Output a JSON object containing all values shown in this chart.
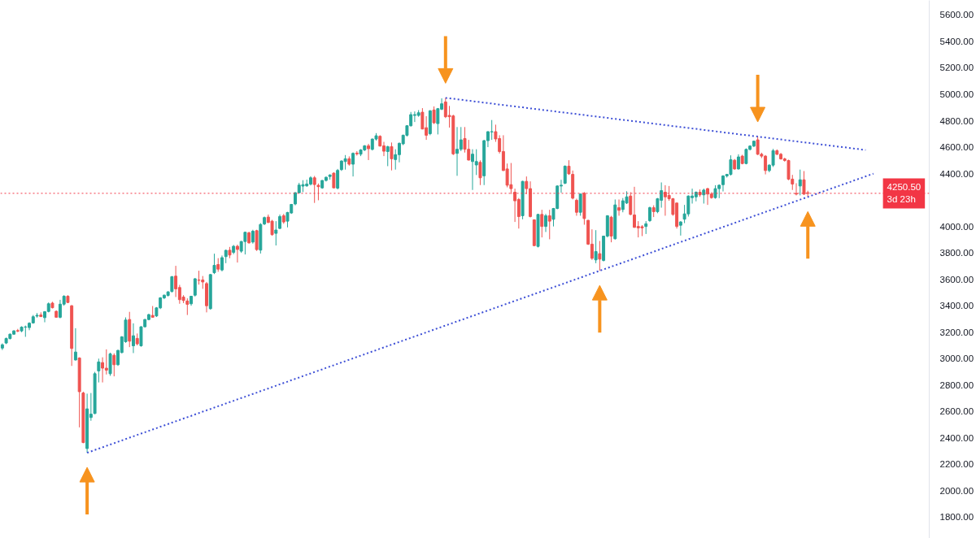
{
  "chart_data": {
    "type": "candlestick",
    "categories": [
      null,
      null,
      null,
      null,
      null,
      null,
      null,
      null,
      null,
      null,
      null,
      null,
      null,
      null,
      null,
      null,
      null,
      null,
      null,
      null,
      null,
      null,
      null,
      null,
      null,
      null,
      null,
      null,
      null,
      null,
      null,
      null,
      null,
      null,
      null,
      null,
      null,
      null,
      null,
      null,
      null,
      null,
      null,
      null,
      null,
      null,
      null,
      null,
      null,
      null,
      null,
      null,
      null,
      null,
      null,
      null,
      null,
      null,
      null,
      null,
      null,
      null,
      null,
      null,
      null,
      null,
      null,
      null,
      null,
      null,
      null,
      null,
      null,
      null,
      null,
      null,
      null,
      null,
      null,
      null,
      null,
      null,
      null,
      null,
      null,
      null,
      null,
      null,
      null,
      null,
      null,
      null,
      null,
      null,
      null,
      null,
      null,
      null,
      null,
      null,
      null,
      null,
      null,
      null,
      null,
      null,
      null,
      null,
      null,
      null,
      null,
      null,
      null,
      null,
      null,
      null,
      null,
      null,
      null,
      null,
      null,
      null,
      null,
      null,
      null,
      null,
      null,
      null,
      null,
      null,
      null,
      null,
      null,
      null,
      null,
      null,
      null,
      null,
      null,
      null,
      null,
      null,
      null,
      null,
      null,
      null,
      null,
      null,
      null,
      null,
      null,
      null,
      null,
      null,
      null,
      null,
      null,
      null,
      null,
      null,
      null,
      null,
      null,
      null,
      null,
      null,
      null,
      null,
      null,
      null,
      null,
      null,
      null,
      null,
      null,
      null,
      null,
      null,
      null,
      null,
      null,
      null,
      null,
      null,
      null,
      null,
      null,
      null,
      null,
      null,
      null,
      null,
      null,
      null,
      null,
      null,
      null,
      null,
      null,
      null,
      null,
      null,
      null,
      null,
      null,
      null,
      null,
      null,
      null,
      null,
      null,
      null,
      null,
      null,
      null,
      null,
      null,
      null,
      null,
      null,
      null,
      null,
      null,
      null,
      null,
      null,
      null,
      null,
      null,
      null,
      null,
      null,
      null,
      null,
      null,
      null,
      null,
      null,
      null,
      null,
      null
    ],
    "ohlc": [
      [
        3080,
        3115,
        3065,
        3105
      ],
      [
        3118,
        3160,
        3110,
        3152
      ],
      [
        3152,
        3190,
        3145,
        3185
      ],
      [
        3185,
        3215,
        3180,
        3210
      ],
      [
        3212,
        3225,
        3200,
        3208
      ],
      [
        3210,
        3245,
        3200,
        3238
      ],
      [
        3238,
        3250,
        3165,
        3240
      ],
      [
        3235,
        3275,
        3215,
        3268
      ],
      [
        3270,
        3330,
        3265,
        3317
      ],
      [
        3322,
        3345,
        3310,
        3328
      ],
      [
        3330,
        3350,
        3315,
        3318
      ],
      [
        3310,
        3360,
        3275,
        3355
      ],
      [
        3357,
        3425,
        3350,
        3415
      ],
      [
        3420,
        3430,
        3380,
        3385
      ],
      [
        3358,
        3365,
        3310,
        3313
      ],
      [
        3313,
        3445,
        3305,
        3412
      ],
      [
        3412,
        3480,
        3400,
        3472
      ],
      [
        3472,
        3480,
        3420,
        3425
      ],
      [
        3400,
        3405,
        2945,
        3077
      ],
      [
        2990,
        3230,
        2985,
        3050
      ],
      [
        3005,
        3010,
        2480,
        2750
      ],
      [
        2740,
        2750,
        2360,
        2365
      ],
      [
        2320,
        2735,
        2288,
        2620
      ],
      [
        2555,
        2740,
        2530,
        2580
      ],
      [
        2585,
        2900,
        2580,
        2886
      ],
      [
        2907,
        3000,
        2820,
        2975
      ],
      [
        2970,
        3010,
        2820,
        2928
      ],
      [
        2928,
        3070,
        2880,
        2913
      ],
      [
        2886,
        3045,
        2870,
        3036
      ],
      [
        3025,
        3040,
        2866,
        2954
      ],
      [
        2954,
        3068,
        2945,
        3062
      ],
      [
        3046,
        3170,
        3040,
        3165
      ],
      [
        3128,
        3312,
        3120,
        3292
      ],
      [
        3296,
        3354,
        3087,
        3132
      ],
      [
        3097,
        3267,
        3042,
        3173
      ],
      [
        3153,
        3190,
        3100,
        3112
      ],
      [
        3097,
        3245,
        3090,
        3241
      ],
      [
        3241,
        3300,
        3235,
        3296
      ],
      [
        3296,
        3340,
        3290,
        3333
      ],
      [
        3327,
        3398,
        3310,
        3313
      ],
      [
        3323,
        3390,
        3315,
        3384
      ],
      [
        3384,
        3465,
        3375,
        3460
      ],
      [
        3460,
        3485,
        3450,
        3480
      ],
      [
        3478,
        3510,
        3470,
        3505
      ],
      [
        3508,
        3625,
        3500,
        3620
      ],
      [
        3624,
        3702,
        3466,
        3528
      ],
      [
        3538,
        3558,
        3415,
        3446
      ],
      [
        3466,
        3480,
        3420,
        3440
      ],
      [
        3436,
        3456,
        3330,
        3411
      ],
      [
        3415,
        3475,
        3400,
        3472
      ],
      [
        3480,
        3610,
        3470,
        3604
      ],
      [
        3595,
        3665,
        3560,
        3593
      ],
      [
        3595,
        3625,
        3528,
        3580
      ],
      [
        3568,
        3580,
        3350,
        3400
      ],
      [
        3378,
        3640,
        3370,
        3636
      ],
      [
        3650,
        3794,
        3640,
        3706
      ],
      [
        3712,
        3760,
        3657,
        3677
      ],
      [
        3671,
        3780,
        3660,
        3764
      ],
      [
        3772,
        3825,
        3722,
        3819
      ],
      [
        3820,
        3845,
        3760,
        3784
      ],
      [
        3804,
        3860,
        3790,
        3850
      ],
      [
        3850,
        3862,
        3727,
        3826
      ],
      [
        3813,
        3890,
        3800,
        3886
      ],
      [
        3886,
        3960,
        3788,
        3956
      ],
      [
        3952,
        3960,
        3870,
        3876
      ],
      [
        3882,
        3975,
        3870,
        3964
      ],
      [
        3968,
        3975,
        3815,
        3825
      ],
      [
        3821,
        4025,
        3795,
        4015
      ],
      [
        4019,
        4075,
        4010,
        4067
      ],
      [
        4071,
        4090,
        4026,
        4030
      ],
      [
        4040,
        4050,
        3930,
        3938
      ],
      [
        3948,
        4040,
        3856,
        3973
      ],
      [
        3985,
        4090,
        3980,
        4075
      ],
      [
        4081,
        4095,
        4020,
        4034
      ],
      [
        4040,
        4110,
        3993,
        4106
      ],
      [
        4102,
        4170,
        4095,
        4167
      ],
      [
        4170,
        4260,
        4160,
        4255
      ],
      [
        4255,
        4330,
        4250,
        4313
      ],
      [
        4305,
        4350,
        4260,
        4316
      ],
      [
        4307,
        4354,
        4300,
        4321
      ],
      [
        4320,
        4380,
        4310,
        4368
      ],
      [
        4368,
        4382,
        4178,
        4317
      ],
      [
        4311,
        4325,
        4198,
        4301
      ],
      [
        4292,
        4350,
        4285,
        4348
      ],
      [
        4348,
        4378,
        4340,
        4372
      ],
      [
        4378,
        4395,
        4354,
        4389
      ],
      [
        4403,
        4410,
        4290,
        4292
      ],
      [
        4290,
        4435,
        4280,
        4424
      ],
      [
        4430,
        4500,
        4420,
        4495
      ],
      [
        4491,
        4540,
        4430,
        4512
      ],
      [
        4512,
        4530,
        4460,
        4471
      ],
      [
        4471,
        4560,
        4378,
        4553
      ],
      [
        4555,
        4570,
        4536,
        4549
      ],
      [
        4547,
        4585,
        4532,
        4579
      ],
      [
        4579,
        4615,
        4570,
        4610
      ],
      [
        4610,
        4625,
        4502,
        4588
      ],
      [
        4583,
        4665,
        4575,
        4661
      ],
      [
        4661,
        4706,
        4650,
        4686
      ],
      [
        4682,
        4690,
        4605,
        4608
      ],
      [
        4610,
        4640,
        4532,
        4569
      ],
      [
        4567,
        4610,
        4456,
        4604
      ],
      [
        4604,
        4635,
        4424,
        4512
      ],
      [
        4506,
        4584,
        4430,
        4543
      ],
      [
        4543,
        4635,
        4485,
        4629
      ],
      [
        4625,
        4695,
        4615,
        4690
      ],
      [
        4690,
        4765,
        4680,
        4762
      ],
      [
        4762,
        4866,
        4755,
        4846
      ],
      [
        4840,
        4870,
        4790,
        4846
      ],
      [
        4840,
        4880,
        4830,
        4860
      ],
      [
        4864,
        4895,
        4735,
        4737
      ],
      [
        4747,
        4834,
        4655,
        4690
      ],
      [
        4702,
        4880,
        4690,
        4875
      ],
      [
        4881,
        4908,
        4775,
        4784
      ],
      [
        4778,
        4896,
        4696,
        4891
      ],
      [
        4887,
        4969,
        4880,
        4928
      ],
      [
        4942,
        4973,
        4820,
        4830
      ],
      [
        4840,
        4912,
        4748,
        4830
      ],
      [
        4836,
        4845,
        4540,
        4549
      ],
      [
        4553,
        4752,
        4383,
        4584
      ],
      [
        4584,
        4752,
        4570,
        4655
      ],
      [
        4665,
        4752,
        4559,
        4584
      ],
      [
        4584,
        4655,
        4500,
        4502
      ],
      [
        4491,
        4584,
        4276,
        4547
      ],
      [
        4465,
        4584,
        4389,
        4491
      ],
      [
        4485,
        4500,
        4313,
        4368
      ],
      [
        4383,
        4655,
        4313,
        4649
      ],
      [
        4649,
        4720,
        4600,
        4717
      ],
      [
        4715,
        4805,
        4655,
        4717
      ],
      [
        4717,
        4770,
        4640,
        4662
      ],
      [
        4665,
        4690,
        4552,
        4567
      ],
      [
        4567,
        4690,
        4420,
        4423
      ],
      [
        4435,
        4476,
        4296,
        4312
      ],
      [
        4316,
        4480,
        4245,
        4286
      ],
      [
        4259,
        4286,
        4034,
        4194
      ],
      [
        4204,
        4215,
        3984,
        4075
      ],
      [
        4081,
        4345,
        4054,
        4341
      ],
      [
        4341,
        4378,
        4245,
        4286
      ],
      [
        4286,
        4341,
        4068,
        4075
      ],
      [
        4050,
        4054,
        3850,
        3855
      ],
      [
        3849,
        4095,
        3841,
        4091
      ],
      [
        4091,
        4126,
        3917,
        4000
      ],
      [
        4000,
        4095,
        3958,
        4081
      ],
      [
        4081,
        4126,
        3903,
        4040
      ],
      [
        4054,
        4140,
        4000,
        4136
      ],
      [
        4136,
        4310,
        4130,
        4306
      ],
      [
        4306,
        4353,
        4255,
        4312
      ],
      [
        4327,
        4462,
        4320,
        4456
      ],
      [
        4456,
        4501,
        4390,
        4398
      ],
      [
        4394,
        4423,
        4205,
        4214
      ],
      [
        4198,
        4210,
        4081,
        4107
      ],
      [
        4107,
        4248,
        4081,
        4245
      ],
      [
        4251,
        4260,
        4013,
        4060
      ],
      [
        4046,
        4050,
        3860,
        3866
      ],
      [
        3866,
        3978,
        3747,
        3759
      ],
      [
        3747,
        3972,
        3722,
        3810
      ],
      [
        3794,
        3890,
        3665,
        3753
      ],
      [
        3743,
        3930,
        3735,
        3927
      ],
      [
        3927,
        4085,
        3917,
        4081
      ],
      [
        4070,
        4080,
        3880,
        3927
      ],
      [
        3907,
        4204,
        3900,
        4163
      ],
      [
        4142,
        4204,
        4081,
        4122
      ],
      [
        4128,
        4215,
        4107,
        4194
      ],
      [
        4177,
        4266,
        4170,
        4224
      ],
      [
        4230,
        4259,
        4085,
        4091
      ],
      [
        4087,
        4300,
        3990,
        3993
      ],
      [
        4000,
        4040,
        3917,
        3989
      ],
      [
        3998,
        4010,
        3927,
        3989
      ],
      [
        4000,
        4040,
        3943,
        4020
      ],
      [
        4044,
        4150,
        4034,
        4142
      ],
      [
        4142,
        4160,
        4071,
        4112
      ],
      [
        4112,
        4215,
        4100,
        4210
      ],
      [
        4198,
        4333,
        4142,
        4271
      ],
      [
        4259,
        4312,
        4081,
        4224
      ],
      [
        4235,
        4306,
        4194,
        4210
      ],
      [
        4210,
        4215,
        4081,
        4091
      ],
      [
        4177,
        4180,
        3984,
        4000
      ],
      [
        4009,
        4040,
        3931,
        4034
      ],
      [
        4055,
        4163,
        4025,
        4095
      ],
      [
        4095,
        4235,
        4075,
        4230
      ],
      [
        4218,
        4286,
        4173,
        4230
      ],
      [
        4224,
        4265,
        4190,
        4259
      ],
      [
        4259,
        4280,
        4224,
        4239
      ],
      [
        4239,
        4286,
        4173,
        4275
      ],
      [
        4286,
        4292,
        4163,
        4245
      ],
      [
        4245,
        4259,
        4210,
        4218
      ],
      [
        4218,
        4312,
        4210,
        4286
      ],
      [
        4286,
        4318,
        4214,
        4312
      ],
      [
        4316,
        4388,
        4265,
        4382
      ],
      [
        4382,
        4398,
        4370,
        4394
      ],
      [
        4394,
        4538,
        4385,
        4505
      ],
      [
        4501,
        4510,
        4429,
        4435
      ],
      [
        4435,
        4546,
        4430,
        4526
      ],
      [
        4532,
        4542,
        4470,
        4476
      ],
      [
        4476,
        4590,
        4470,
        4583
      ],
      [
        4583,
        4614,
        4575,
        4608
      ],
      [
        4608,
        4650,
        4600,
        4645
      ],
      [
        4655,
        4680,
        4540,
        4546
      ],
      [
        4546,
        4558,
        4517,
        4532
      ],
      [
        4532,
        4540,
        4394,
        4423
      ],
      [
        4423,
        4470,
        4410,
        4464
      ],
      [
        4464,
        4587,
        4450,
        4573
      ],
      [
        4573,
        4583,
        4540,
        4546
      ],
      [
        4546,
        4556,
        4505,
        4511
      ],
      [
        4511,
        4520,
        4490,
        4499
      ],
      [
        4499,
        4505,
        4350,
        4358
      ],
      [
        4358,
        4390,
        4276,
        4321
      ],
      [
        4250,
        4327,
        4235,
        4245
      ],
      [
        4306,
        4430,
        4235,
        4353
      ],
      [
        4353,
        4419,
        4238,
        4245
      ],
      [
        4255,
        4270,
        4223,
        4250.5
      ],
      null,
      null,
      null,
      null,
      null,
      null,
      null,
      null,
      null,
      null,
      null,
      null,
      null,
      null,
      null,
      null,
      null,
      null,
      null,
      null,
      null,
      null,
      null,
      null,
      null,
      null,
      null,
      null,
      null,
      null,
      null
    ],
    "colors": [
      "#26a69a",
      "#26a69a",
      "#26a69a",
      "#26a69a",
      "#ef5350",
      "#26a69a",
      "#26a69a",
      "#26a69a",
      "#26a69a",
      "#26a69a",
      "#ef5350",
      "#26a69a",
      "#26a69a",
      "#ef5350",
      "#ef5350",
      "#26a69a",
      "#26a69a",
      "#ef5350",
      "#ef5350",
      "#26a69a",
      "#ef5350",
      "#ef5350",
      "#26a69a",
      "#26a69a",
      "#26a69a",
      "#26a69a",
      "#ef5350",
      "#ef5350",
      "#26a69a",
      "#ef5350",
      "#26a69a",
      "#26a69a",
      "#26a69a",
      "#ef5350",
      "#26a69a",
      "#ef5350",
      "#26a69a",
      "#26a69a",
      "#26a69a",
      "#ef5350",
      "#26a69a",
      "#26a69a",
      "#26a69a",
      "#26a69a",
      "#26a69a",
      "#ef5350",
      "#ef5350",
      "#ef5350",
      "#ef5350",
      "#26a69a",
      "#26a69a",
      "#ef5350",
      "#ef5350",
      "#ef5350",
      "#26a69a",
      "#26a69a",
      "#ef5350",
      "#26a69a",
      "#26a69a",
      "#ef5350",
      "#26a69a",
      "#ef5350",
      "#26a69a",
      "#26a69a",
      "#ef5350",
      "#26a69a",
      "#ef5350",
      "#26a69a",
      "#26a69a",
      "#ef5350",
      "#ef5350",
      "#26a69a",
      "#26a69a",
      "#ef5350",
      "#26a69a",
      "#26a69a",
      "#26a69a",
      "#26a69a",
      "#26a69a",
      "#26a69a",
      "#26a69a",
      "#ef5350",
      "#ef5350",
      "#26a69a",
      "#26a69a",
      "#26a69a",
      "#ef5350",
      "#26a69a",
      "#26a69a",
      "#26a69a",
      "#ef5350",
      "#26a69a",
      "#ef5350",
      "#26a69a",
      "#26a69a",
      "#ef5350",
      "#26a69a",
      "#26a69a",
      "#ef5350",
      "#ef5350",
      "#26a69a",
      "#ef5350",
      "#26a69a",
      "#26a69a",
      "#26a69a",
      "#26a69a",
      "#26a69a",
      "#26a69a",
      "#26a69a",
      "#ef5350",
      "#ef5350",
      "#26a69a",
      "#ef5350",
      "#26a69a",
      "#26a69a",
      "#ef5350",
      "#ef5350",
      "#ef5350",
      "#26a69a",
      "#26a69a",
      "#ef5350",
      "#ef5350",
      "#26a69a",
      "#26a69a",
      "#ef5350",
      "#26a69a",
      "#26a69a",
      "#26a69a",
      "#ef5350",
      "#ef5350",
      "#ef5350",
      "#ef5350",
      "#ef5350",
      "#ef5350",
      "#ef5350",
      "#26a69a",
      "#ef5350",
      "#ef5350",
      "#ef5350",
      "#26a69a",
      "#ef5350",
      "#26a69a",
      "#ef5350",
      "#26a69a",
      "#26a69a",
      "#26a69a",
      "#26a69a",
      "#ef5350",
      "#ef5350",
      "#ef5350",
      "#26a69a",
      "#ef5350",
      "#ef5350",
      "#ef5350",
      "#26a69a",
      "#ef5350",
      "#26a69a",
      "#26a69a",
      "#ef5350",
      "#26a69a",
      "#ef5350",
      "#26a69a",
      "#26a69a",
      "#ef5350",
      "#ef5350",
      "#ef5350",
      "#ef5350",
      "#26a69a",
      "#26a69a",
      "#ef5350",
      "#26a69a",
      "#26a69a",
      "#ef5350",
      "#ef5350",
      "#ef5350",
      "#ef5350",
      "#26a69a",
      "#26a69a",
      "#26a69a",
      "#26a69a",
      "#26a69a",
      "#ef5350",
      "#26a69a",
      "#ef5350",
      "#ef5350",
      "#26a69a",
      "#26a69a",
      "#26a69a",
      "#26a69a",
      "#26a69a",
      "#ef5350",
      "#26a69a",
      "#ef5350",
      "#26a69a",
      "#26a69a",
      "#26a69a",
      "#ef5350",
      "#ef5350",
      "#ef5350",
      "#26a69a",
      "#26a69a",
      "#ef5350",
      "#ef5350",
      "#ef5350",
      "#ef5350",
      "#ef5350",
      "#ef5350",
      "#26a69a",
      "#ef5350",
      "#ef5350",
      null,
      null,
      null,
      null,
      null,
      null,
      null,
      null,
      null,
      null,
      null,
      null,
      null,
      null,
      null,
      null,
      null,
      null,
      null,
      null,
      null,
      null,
      null,
      null,
      null,
      null,
      null,
      null,
      null,
      null,
      null
    ],
    "series": [
      {
        "type": "line",
        "color": "#3d4fd6",
        "values": [
          null,
          null,
          null,
          null,
          null,
          null,
          null,
          null,
          null,
          null,
          null,
          null,
          null,
          null,
          null,
          null,
          null,
          null,
          null,
          null,
          null,
          null,
          2288,
          2298,
          2309,
          2319,
          2329,
          2340,
          2350,
          2360,
          2371,
          2381,
          2392,
          2402,
          2412,
          2423,
          2433,
          2443,
          2454,
          2464,
          2474,
          2485,
          2495,
          2505,
          2516,
          2526,
          2536,
          2547,
          2557,
          2567,
          2578,
          2588,
          2599,
          2609,
          2619,
          2630,
          2640,
          2650,
          2661,
          2671,
          2681,
          2692,
          2702,
          2712,
          2723,
          2733,
          2743,
          2754,
          2764,
          2774,
          2785,
          2795,
          2806,
          2816,
          2826,
          2837,
          2847,
          2857,
          2868,
          2878,
          2888,
          2899,
          2909,
          2919,
          2930,
          2940,
          2950,
          2961,
          2971,
          2981,
          2992,
          3002,
          3013,
          3023,
          3033,
          3044,
          3054,
          3064,
          3075,
          3085,
          3095,
          3106,
          3116,
          3126,
          3137,
          3147,
          3157,
          3168,
          3178,
          3188,
          3199,
          3209,
          3220,
          3230,
          3240,
          3251,
          3261,
          3271,
          3282,
          3292,
          3302,
          3313,
          3323,
          3333,
          3344,
          3354,
          3364,
          3375,
          3385,
          3395,
          3406,
          3416,
          3427,
          3437,
          3447,
          3458,
          3468,
          3478,
          3489,
          3499,
          3509,
          3520,
          3530,
          3540,
          3551,
          3561,
          3571,
          3582,
          3592,
          3602,
          3613,
          3623,
          3634,
          3644,
          3654,
          3665,
          3675,
          3685,
          3696,
          3706,
          3716,
          3727,
          3737,
          3747,
          3758,
          3768,
          3778,
          3789,
          3799,
          3809,
          3820,
          3830,
          3841,
          3851,
          3861,
          3872,
          3882,
          3892,
          3903,
          3913,
          3923,
          3934,
          3944,
          3954,
          3965,
          3975,
          3985,
          3996,
          4006,
          4016,
          4027,
          4037,
          4048,
          4058,
          4068,
          4079,
          4089,
          4099,
          4110,
          4120,
          4130,
          4141,
          4151,
          4161,
          4172,
          4182,
          4192,
          4203,
          4213,
          4223,
          4234,
          4244,
          4255,
          4265,
          4275,
          4286,
          4296,
          4306,
          4317,
          4327,
          4337,
          4348,
          4358,
          4368,
          4379,
          4389,
          4399,
          null,
          null,
          null,
          null,
          null,
          null,
          null,
          null,
          null,
          null,
          null,
          null,
          null,
          null
        ]
      },
      {
        "type": "line",
        "color": "#3d4fd6",
        "values": [
          null,
          null,
          null,
          null,
          null,
          null,
          null,
          null,
          null,
          null,
          null,
          null,
          null,
          null,
          null,
          null,
          null,
          null,
          null,
          null,
          null,
          null,
          null,
          null,
          null,
          null,
          null,
          null,
          null,
          null,
          null,
          null,
          null,
          null,
          null,
          null,
          null,
          null,
          null,
          null,
          null,
          null,
          null,
          null,
          null,
          null,
          null,
          null,
          null,
          null,
          null,
          null,
          null,
          null,
          null,
          null,
          null,
          null,
          null,
          null,
          null,
          null,
          null,
          null,
          null,
          null,
          null,
          null,
          null,
          null,
          null,
          null,
          null,
          null,
          null,
          null,
          null,
          null,
          null,
          null,
          null,
          null,
          null,
          null,
          null,
          null,
          null,
          null,
          null,
          null,
          null,
          null,
          null,
          null,
          null,
          null,
          null,
          null,
          null,
          null,
          null,
          null,
          null,
          null,
          null,
          null,
          null,
          null,
          null,
          null,
          null,
          null,
          null,
          null,
          null,
          4973,
          4969,
          4966,
          4962,
          4959,
          4955,
          4951,
          4948,
          4944,
          4940,
          4937,
          4933,
          4930,
          4926,
          4922,
          4919,
          4915,
          4911,
          4908,
          4904,
          4901,
          4897,
          4893,
          4890,
          4886,
          4882,
          4879,
          4875,
          4872,
          4868,
          4864,
          4861,
          4857,
          4854,
          4850,
          4846,
          4843,
          4839,
          4835,
          4832,
          4828,
          4825,
          4821,
          4817,
          4814,
          4810,
          4806,
          4803,
          4799,
          4796,
          4792,
          4788,
          4785,
          4781,
          4778,
          4774,
          4770,
          4767,
          4763,
          4759,
          4756,
          4752,
          4749,
          4745,
          4741,
          4738,
          4734,
          4730,
          4727,
          4723,
          4720,
          4716,
          4712,
          4709,
          4705,
          4702,
          4698,
          4694,
          4691,
          4687,
          4683,
          4680,
          4676,
          4673,
          4669,
          4665,
          4662,
          4658,
          4654,
          4651,
          4647,
          4644,
          4640,
          4636,
          4633,
          4629,
          4625,
          4622,
          4618,
          4615,
          4611,
          4607,
          4604,
          4600,
          4597,
          4593,
          4589,
          4586,
          4582,
          4578,
          null,
          null,
          null,
          null,
          null,
          null,
          null,
          null,
          null,
          null,
          null,
          null,
          null,
          null,
          null,
          null
        ]
      }
    ],
    "line_style": "dotted",
    "ylim": [
      1640,
      5710
    ],
    "yticks": [
      {
        "value": 1800,
        "label": "1800.00"
      },
      {
        "value": 2000,
        "label": "2000.00"
      },
      {
        "value": 2200,
        "label": "2200.00"
      },
      {
        "value": 2400,
        "label": "2400.00"
      },
      {
        "value": 2600,
        "label": "2600.00"
      },
      {
        "value": 2800,
        "label": "2800.00"
      },
      {
        "value": 3000,
        "label": "3000.00"
      },
      {
        "value": 3200,
        "label": "3200.00"
      },
      {
        "value": 3400,
        "label": "3400.00"
      },
      {
        "value": 3600,
        "label": "3600.00"
      },
      {
        "value": 3800,
        "label": "3800.00"
      },
      {
        "value": 4000,
        "label": "4000.00"
      },
      {
        "value": 4400,
        "label": "4400.00"
      },
      {
        "value": 4600,
        "label": "4600.00"
      },
      {
        "value": 4800,
        "label": "4800.00"
      },
      {
        "value": 5000,
        "label": "5000.00"
      },
      {
        "value": 5200,
        "label": "5200.00"
      },
      {
        "value": 5400,
        "label": "5400.00"
      },
      {
        "value": 5600,
        "label": "5600.00"
      }
    ],
    "ref_lines": [
      {
        "axis": "y",
        "value": 4250.5,
        "label": "4250.50\n3d 23h",
        "color": "#f23645",
        "line_style": "dotted"
      }
    ],
    "tick_labels": "y"
  }
}
